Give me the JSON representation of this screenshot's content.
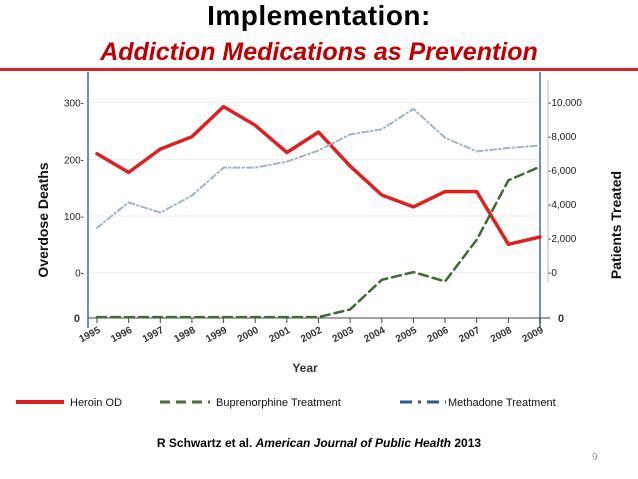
{
  "slide": {
    "title": "Implementation:",
    "subtitle": "Addiction Medications as Prevention",
    "citation_author": "R Schwartz et al.",
    "citation_journal": "American Journal of Public Health",
    "citation_year": "2013",
    "page_number": "9"
  },
  "colors": {
    "heroin": "#e02020",
    "buprenorphine": "#3b6b2f",
    "methadone": "#9fb4c8",
    "axis": "#6a8fc2",
    "title_rule": "#d92525"
  },
  "chart_data": {
    "type": "line",
    "x": [
      "1995",
      "1996",
      "1997",
      "1998",
      "1999",
      "2000",
      "2001",
      "2002",
      "2003",
      "2004",
      "2005",
      "2006",
      "2007",
      "2008",
      "2009"
    ],
    "xlabel": "Year",
    "left_axis": {
      "label": "Overdose Deaths",
      "ticks": [
        0,
        100,
        200,
        300
      ],
      "tick_labels": [
        "0-",
        "100-",
        "200-",
        "300-"
      ],
      "bottom_tick_label": "0",
      "ylim": [
        -80,
        340
      ]
    },
    "right_axis": {
      "label": "Patients Treated",
      "ticks": [
        0,
        2000,
        4000,
        6000,
        8000,
        10000
      ],
      "tick_labels": [
        "-0",
        "-2,000",
        "-4,000",
        "-6,000",
        "-8,000",
        "-10,000"
      ],
      "bottom_tick_label": "0",
      "ylim": [
        -2700,
        11300
      ]
    },
    "series": [
      {
        "name": "Heroin OD",
        "axis": "left",
        "style": "solid",
        "color_key": "heroin",
        "values": [
          210,
          177,
          218,
          240,
          293,
          260,
          212,
          248,
          188,
          137,
          116,
          143,
          143,
          50,
          63
        ]
      },
      {
        "name": "Buprenorphine Treatment",
        "axis": "right",
        "style": "dash",
        "color_key": "buprenorphine",
        "values": [
          -2650,
          -2650,
          -2650,
          -2650,
          -2650,
          -2650,
          -2650,
          -2650,
          -2200,
          -450,
          0,
          -550,
          1900,
          5400,
          6200
        ]
      },
      {
        "name": "Methadone Treatment",
        "axis": "right",
        "style": "dashdot",
        "color_key": "methadone",
        "values": [
          2600,
          4100,
          3500,
          4500,
          6150,
          6150,
          6500,
          7150,
          8100,
          8400,
          9600,
          7900,
          7100,
          7300,
          7450
        ]
      }
    ],
    "legend_position": "bottom"
  }
}
